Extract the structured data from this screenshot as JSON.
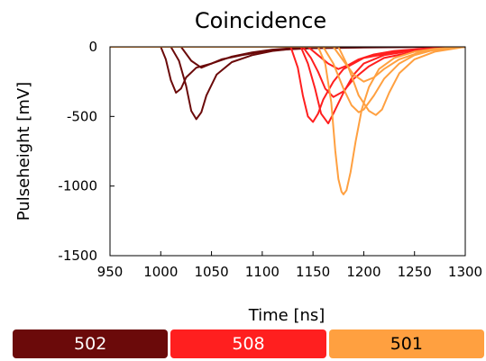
{
  "chart_data": {
    "type": "line",
    "title": "Coincidence",
    "xlabel": "Time [ns]",
    "ylabel": "Pulseheight [mV]",
    "xlim": [
      950,
      1300
    ],
    "ylim": [
      -1500,
      0
    ],
    "xticks": [
      "950",
      "1000",
      "1050",
      "1100",
      "1150",
      "1200",
      "1250",
      "1300"
    ],
    "yticks": [
      "0",
      "-500",
      "-1000",
      "-1500"
    ],
    "grid": false,
    "legend_position": "bottom",
    "series": [
      {
        "name": "502",
        "color": "#6b0a0a",
        "traces": [
          {
            "x": [
              950,
              1000,
              1005,
              1010,
              1015,
              1020,
              1025,
              1035,
              1050,
              1070,
              1090,
              1110,
              1130,
              1150,
              1200,
              1250,
              1300
            ],
            "y": [
              0,
              0,
              -90,
              -240,
              -330,
              -300,
              -220,
              -150,
              -120,
              -70,
              -40,
              -20,
              -10,
              -5,
              -2,
              0,
              0
            ]
          },
          {
            "x": [
              950,
              1010,
              1018,
              1025,
              1030,
              1035,
              1040,
              1045,
              1055,
              1070,
              1090,
              1110,
              1130,
              1150,
              1200,
              1250,
              1300
            ],
            "y": [
              0,
              0,
              -100,
              -280,
              -460,
              -520,
              -470,
              -350,
              -200,
              -110,
              -60,
              -30,
              -15,
              -8,
              -3,
              0,
              0
            ]
          },
          {
            "x": [
              950,
              1020,
              1030,
              1040,
              1050,
              1060,
              1080,
              1100,
              1120,
              1150,
              1200,
              1250,
              1300
            ],
            "y": [
              0,
              0,
              -100,
              -150,
              -120,
              -90,
              -60,
              -35,
              -20,
              -10,
              -5,
              -2,
              0
            ]
          }
        ]
      },
      {
        "name": "508",
        "color": "#ff1f1f",
        "traces": [
          {
            "x": [
              950,
              1128,
              1135,
              1140,
              1145,
              1150,
              1155,
              1160,
              1170,
              1180,
              1200,
              1230,
              1260,
              1300
            ],
            "y": [
              0,
              0,
              -150,
              -350,
              -500,
              -540,
              -480,
              -380,
              -250,
              -160,
              -80,
              -40,
              -15,
              0
            ]
          },
          {
            "x": [
              950,
              1138,
              1145,
              1152,
              1158,
              1165,
              1170,
              1180,
              1190,
              1200,
              1220,
              1250,
              1280,
              1300
            ],
            "y": [
              0,
              0,
              -120,
              -300,
              -480,
              -550,
              -480,
              -330,
              -200,
              -120,
              -60,
              -25,
              -10,
              0
            ]
          },
          {
            "x": [
              950,
              1140,
              1148,
              1155,
              1162,
              1170,
              1180,
              1190,
              1205,
              1220,
              1250,
              1280,
              1300
            ],
            "y": [
              0,
              0,
              -80,
              -180,
              -300,
              -360,
              -320,
              -230,
              -140,
              -80,
              -35,
              -12,
              0
            ]
          },
          {
            "x": [
              950,
              1145,
              1155,
              1165,
              1175,
              1185,
              1195,
              1210,
              1230,
              1260,
              1300
            ],
            "y": [
              0,
              0,
              -60,
              -120,
              -160,
              -130,
              -90,
              -55,
              -30,
              -12,
              0
            ]
          }
        ]
      },
      {
        "name": "501",
        "color": "#ffa040",
        "traces": [
          {
            "x": [
              950,
              1155,
              1162,
              1168,
              1172,
              1175,
              1178,
              1180,
              1183,
              1187,
              1192,
              1198,
              1205,
              1215,
              1230,
              1250,
              1270,
              1300
            ],
            "y": [
              0,
              0,
              -120,
              -400,
              -750,
              -950,
              -1040,
              -1060,
              -1030,
              -900,
              -680,
              -450,
              -290,
              -160,
              -80,
              -35,
              -15,
              0
            ]
          },
          {
            "x": [
              950,
              1160,
              1170,
              1180,
              1188,
              1195,
              1200,
              1210,
              1220,
              1235,
              1250,
              1270,
              1300
            ],
            "y": [
              0,
              0,
              -120,
              -300,
              -420,
              -470,
              -450,
              -350,
              -230,
              -120,
              -60,
              -20,
              0
            ]
          },
          {
            "x": [
              950,
              1175,
              1185,
              1195,
              1205,
              1212,
              1218,
              1225,
              1235,
              1250,
              1270,
              1300
            ],
            "y": [
              0,
              0,
              -150,
              -350,
              -460,
              -490,
              -450,
              -330,
              -190,
              -90,
              -35,
              0
            ]
          },
          {
            "x": [
              950,
              1170,
              1180,
              1190,
              1200,
              1210,
              1220,
              1235,
              1255,
              1280,
              1300
            ],
            "y": [
              0,
              0,
              -100,
              -200,
              -250,
              -220,
              -160,
              -90,
              -40,
              -12,
              0
            ]
          }
        ]
      }
    ]
  }
}
